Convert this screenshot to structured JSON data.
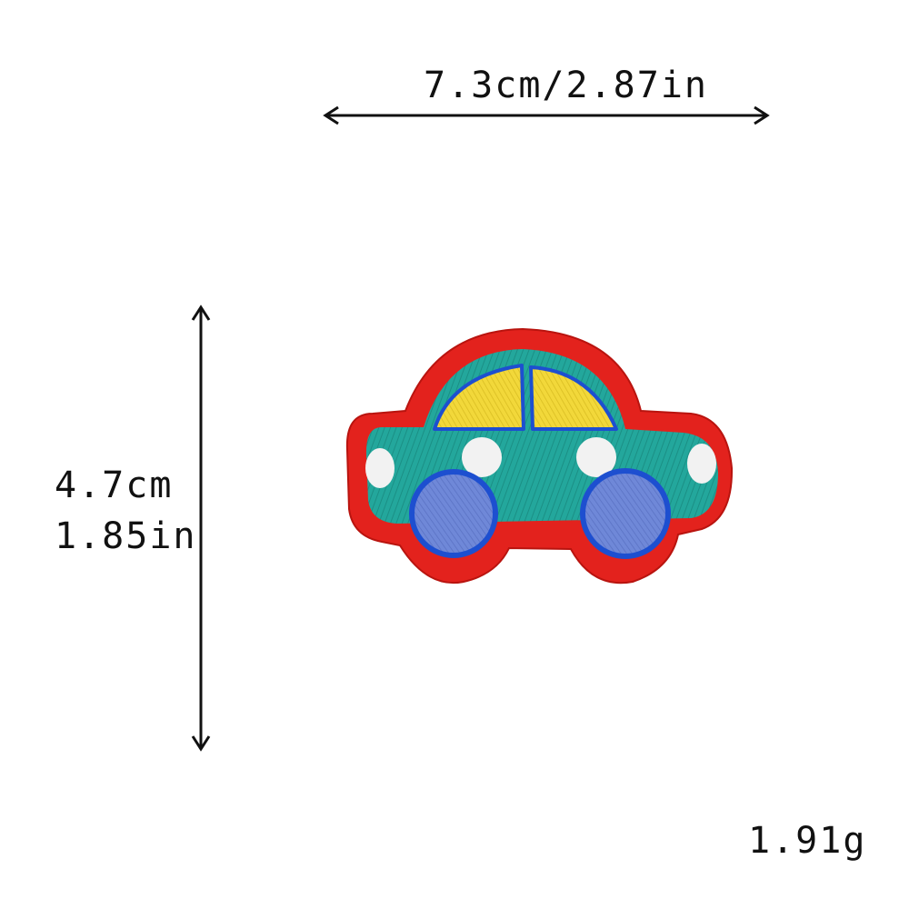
{
  "dimensions": {
    "width_label": "7.3cm/2.87in",
    "height_cm": "4.7cm",
    "height_in": "1.85in",
    "weight": "1.91g"
  },
  "product": {
    "icon": "car-patch-icon",
    "colors": {
      "border": "#e3221d",
      "body": "#23a79c",
      "window": "#f2d83a",
      "wheel": "#6f88d8",
      "wheel_rim": "#1d4fd0",
      "dots": "#f2f2f2"
    }
  }
}
